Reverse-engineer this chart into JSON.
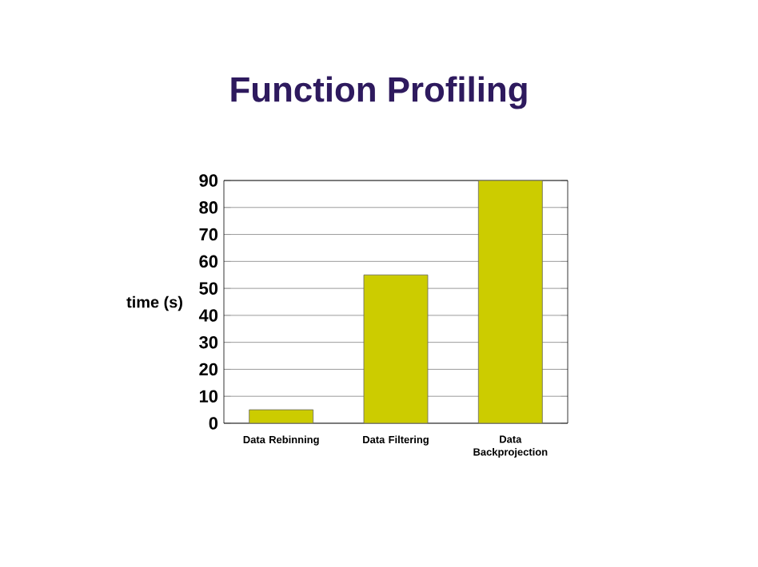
{
  "chart_data": {
    "type": "bar",
    "title": "Function Profiling",
    "ylabel": "time (s)",
    "categories": [
      "Data Rebinning",
      "Data Filtering",
      "Data Backprojection"
    ],
    "values": [
      5,
      55,
      90
    ],
    "color": "#cccc00",
    "ylim": [
      0,
      90
    ],
    "yticks": [
      0,
      10,
      20,
      30,
      40,
      50,
      60,
      70,
      80,
      90
    ],
    "grid": "y"
  }
}
